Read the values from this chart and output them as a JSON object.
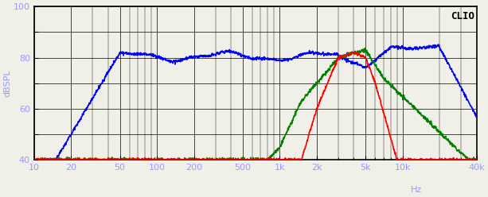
{
  "title": "CLIO",
  "ylabel": "dBSPL",
  "xlabel_hz": "Hz",
  "xlim": [
    10,
    40000
  ],
  "ylim": [
    40,
    100
  ],
  "yticks": [
    40,
    50,
    60,
    70,
    80,
    90,
    100
  ],
  "ytick_labels": [
    "40",
    "",
    "60",
    "",
    "80",
    "",
    "100"
  ],
  "xtick_positions": [
    10,
    20,
    50,
    100,
    200,
    500,
    1000,
    2000,
    5000,
    10000,
    40000
  ],
  "xtick_labels": [
    "10",
    "20",
    "50",
    "100",
    "200",
    "500",
    "1k",
    "2k",
    "5k",
    "10k",
    "40k"
  ],
  "bg_color": "#f0f0e8",
  "grid_color": "#000000",
  "line_blue": "#0000ff",
  "line_green": "#008000",
  "line_red": "#ff0000"
}
